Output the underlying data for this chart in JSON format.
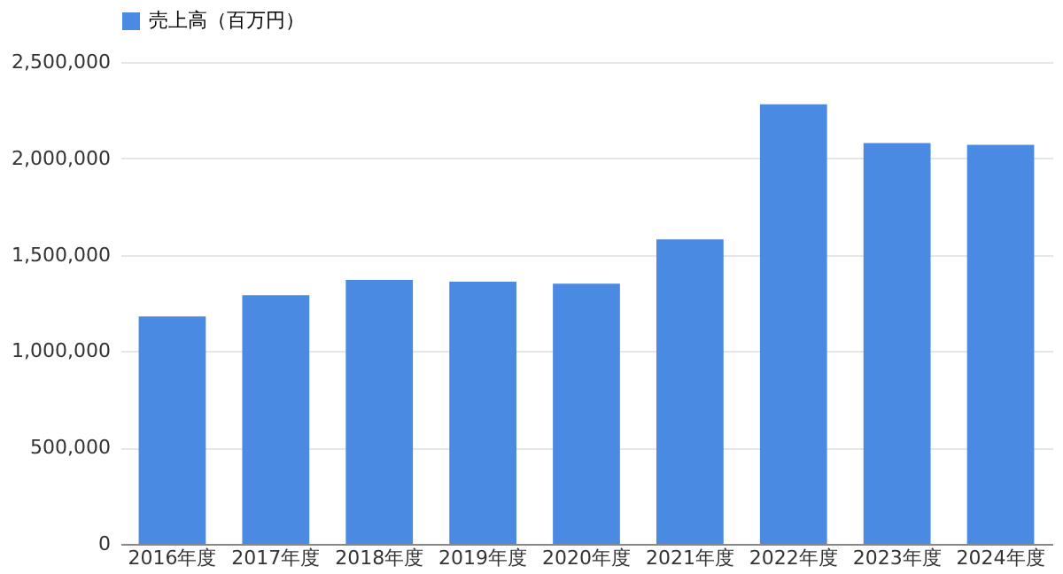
{
  "chart_data": {
    "type": "bar",
    "categories": [
      "2016年度",
      "2017年度",
      "2018年度",
      "2019年度",
      "2020年度",
      "2021年度",
      "2022年度",
      "2023年度",
      "2024年度"
    ],
    "series": [
      {
        "name": "売上高（百万円）",
        "color": "#4a8ae3",
        "values": [
          1180000,
          1290000,
          1370000,
          1360000,
          1350000,
          1580000,
          2280000,
          2080000,
          2070000
        ]
      }
    ],
    "ylim": [
      0,
      2500000
    ],
    "yticks": [
      0,
      {
        "value": 500000,
        "label": "500,000"
      },
      {
        "value": 1000000,
        "label": "1,000,000"
      },
      {
        "value": 1500000,
        "label": "1,500,000"
      },
      {
        "value": 2000000,
        "label": "2,000,000"
      },
      {
        "value": 2500000,
        "label": "2,500,000"
      }
    ],
    "grid": "y",
    "legend": "top"
  }
}
